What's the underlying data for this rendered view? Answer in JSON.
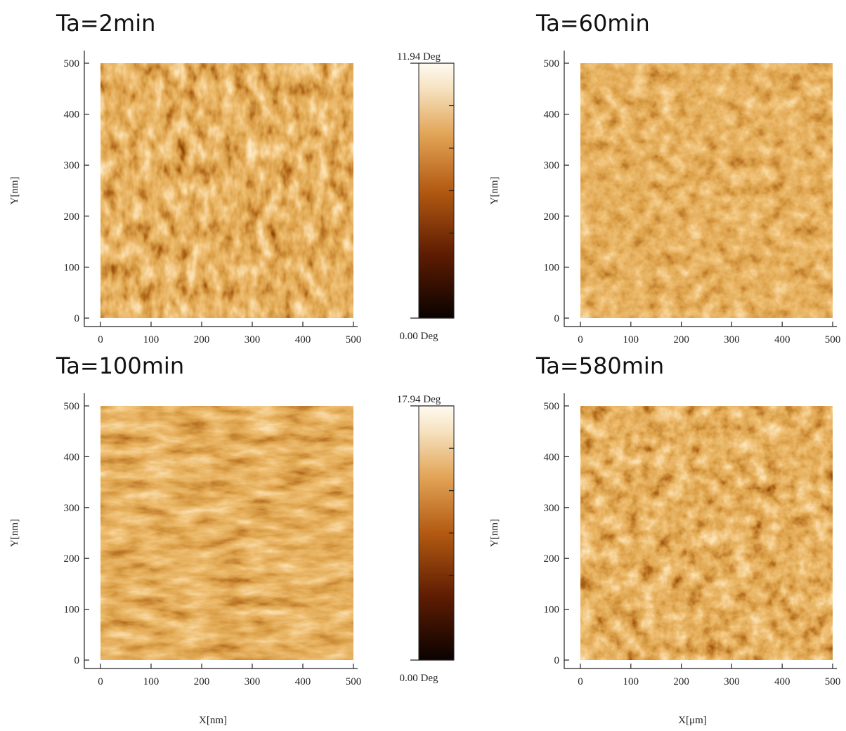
{
  "chart_data": [
    {
      "type": "image",
      "title": "Ta=2min",
      "y_label": "Y[nm]",
      "xlim": [
        0,
        500
      ],
      "ylim": [
        0,
        500
      ],
      "xticks": [
        0,
        100,
        200,
        300,
        400,
        500
      ],
      "yticks": [
        0,
        100,
        200,
        300,
        400,
        500
      ],
      "clim": [
        0,
        11.94
      ],
      "cticks": [
        {
          "value": 0,
          "label": "0.00 Deg"
        },
        {
          "value": 11.94,
          "label": "11.94 Deg"
        }
      ]
    },
    {
      "type": "image",
      "title": "Ta=60min",
      "y_label": "Y[nm]",
      "xlim": [
        0,
        500
      ],
      "ylim": [
        0,
        500
      ],
      "xticks": [
        0,
        100,
        200,
        300,
        400,
        500
      ],
      "yticks": [
        0,
        100,
        200,
        300,
        400,
        500
      ]
    },
    {
      "type": "image",
      "title": "Ta=100min",
      "y_label": "Y[nm]",
      "x_label": "X[nm]",
      "xlim": [
        0,
        500
      ],
      "ylim": [
        0,
        500
      ],
      "xticks": [
        0,
        100,
        200,
        300,
        400,
        500
      ],
      "yticks": [
        0,
        100,
        200,
        300,
        400,
        500
      ],
      "clim": [
        0,
        17.94
      ],
      "cticks": [
        {
          "value": 0,
          "label": "0.00 Deg"
        },
        {
          "value": 17.94,
          "label": "17.94 Deg"
        }
      ]
    },
    {
      "type": "image",
      "title": "Ta=580min",
      "y_label": "Y[nm]",
      "x_label": "X[μm]",
      "xlim": [
        0,
        500
      ],
      "ylim": [
        0,
        500
      ],
      "xticks": [
        0,
        100,
        200,
        300,
        400,
        500
      ],
      "yticks": [
        0,
        100,
        200,
        300,
        400,
        500
      ]
    }
  ]
}
